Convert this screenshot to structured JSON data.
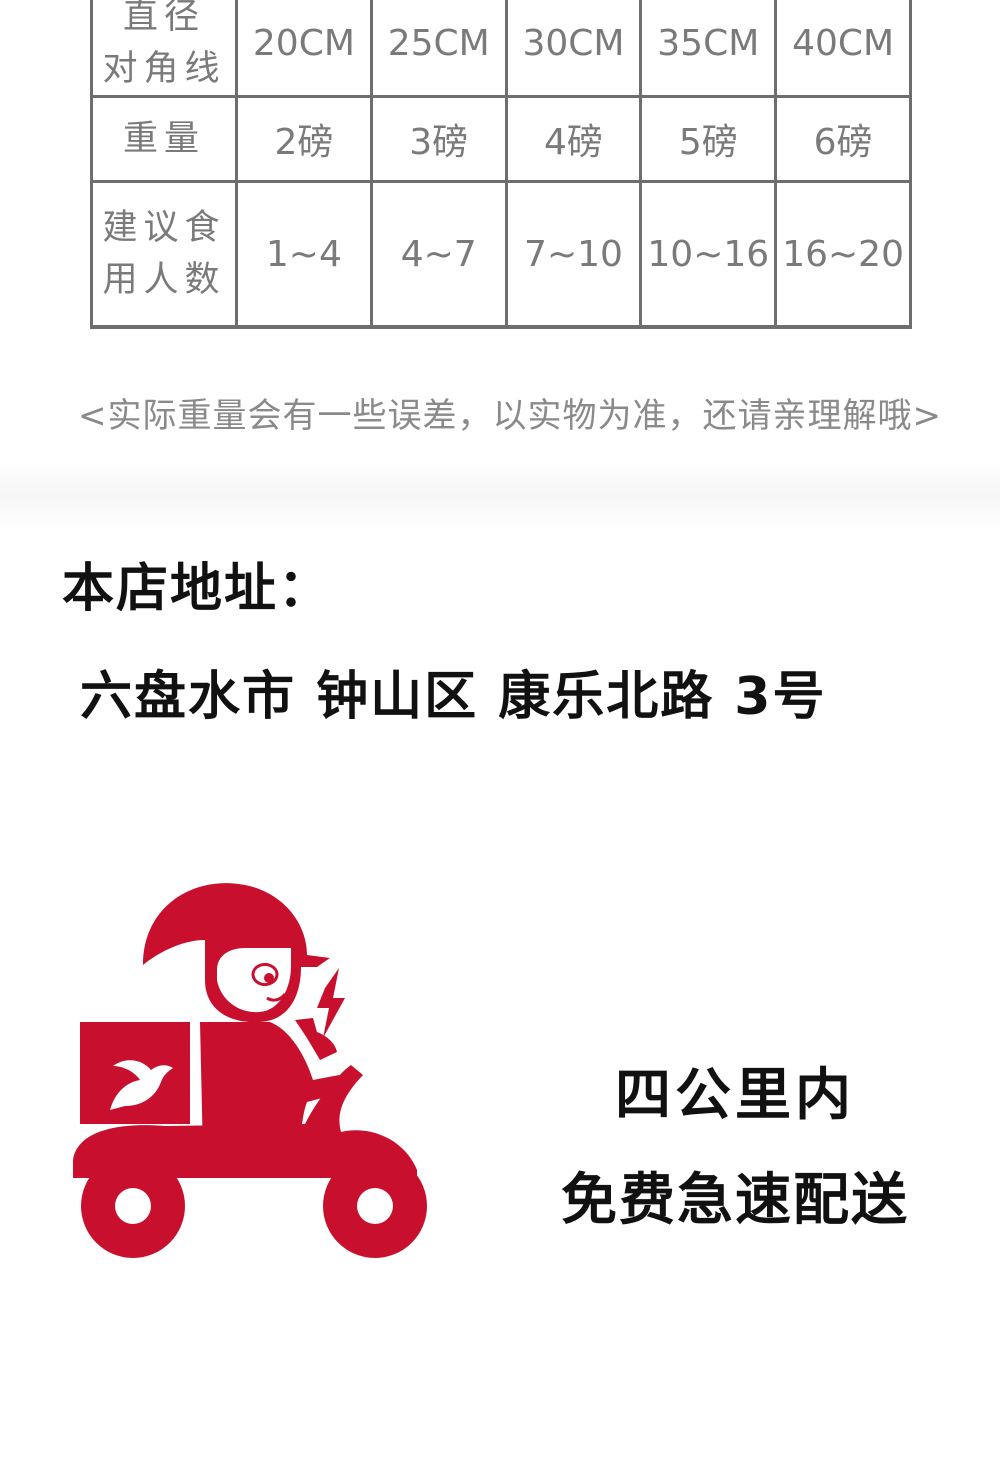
{
  "size_table": {
    "rows": [
      {
        "header_lines": [
          "直径",
          "对角线"
        ],
        "cells": [
          "20CM",
          "25CM",
          "30CM",
          "35CM",
          "40CM"
        ]
      },
      {
        "header_lines": [
          "重量"
        ],
        "cells": [
          "2磅",
          "3磅",
          "4磅",
          "5磅",
          "6磅"
        ]
      },
      {
        "header_lines": [
          "建议食",
          "用人数"
        ],
        "cells": [
          "1~4",
          "4~7",
          "7~10",
          "10~16",
          "16~20"
        ]
      }
    ]
  },
  "note": "<实际重量会有一些误差，以实物为准，还请亲理解哦>",
  "address": {
    "label": "本店地址：",
    "value": "六盘水市 钟山区 康乐北路 3号"
  },
  "delivery": {
    "line1": "四公里内",
    "line2": "免费急速配送",
    "accent_color": "#c8102e"
  },
  "icons": {
    "rider": "delivery-scooter-rider-icon",
    "box_logo": "dove-icon"
  }
}
